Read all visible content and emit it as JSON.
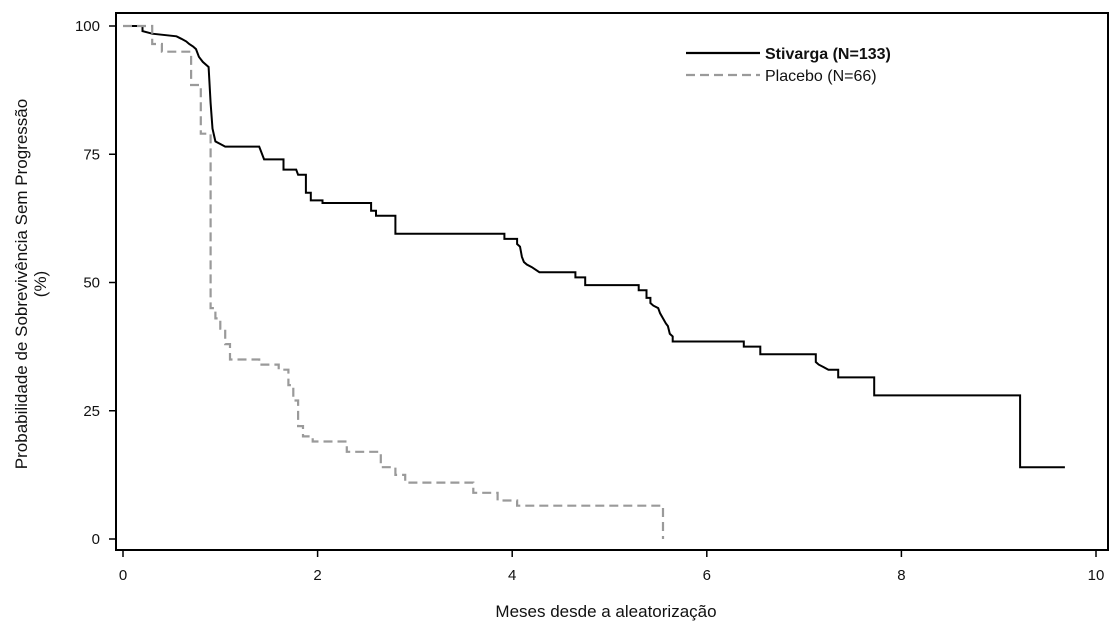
{
  "chart_data": {
    "type": "line",
    "subtype": "kaplan-meier step curves",
    "title": "",
    "xlabel": "Meses desde a aleatorização",
    "ylabel_lines": [
      "Probabilidade de Sobrevivência Sem Progressão",
      "(%)"
    ],
    "xlim": [
      0,
      10
    ],
    "ylim": [
      0,
      100
    ],
    "x_ticks": [
      0,
      2,
      4,
      6,
      8,
      10
    ],
    "y_ticks": [
      0,
      25,
      50,
      75,
      100
    ],
    "grid": false,
    "legend_position": "top-right",
    "series": [
      {
        "name": "Stivarga (N=133)",
        "legend_bold": true,
        "color": "#000000",
        "dash": "solid",
        "points": [
          [
            0,
            100
          ],
          [
            0.2,
            100
          ],
          [
            0.2,
            99
          ],
          [
            0.3,
            98.5
          ],
          [
            0.55,
            98
          ],
          [
            0.6,
            97.5
          ],
          [
            0.65,
            97
          ],
          [
            0.68,
            96.5
          ],
          [
            0.72,
            96
          ],
          [
            0.75,
            95.5
          ],
          [
            0.78,
            94
          ],
          [
            0.82,
            93
          ],
          [
            0.88,
            92
          ],
          [
            0.9,
            85
          ],
          [
            0.92,
            80
          ],
          [
            0.95,
            77.5
          ],
          [
            1.0,
            77
          ],
          [
            1.05,
            76.5
          ],
          [
            1.4,
            76.5
          ],
          [
            1.45,
            74
          ],
          [
            1.65,
            74
          ],
          [
            1.65,
            72
          ],
          [
            1.78,
            72
          ],
          [
            1.8,
            71
          ],
          [
            1.88,
            71
          ],
          [
            1.88,
            67.5
          ],
          [
            1.93,
            67.5
          ],
          [
            1.93,
            66
          ],
          [
            2.05,
            66
          ],
          [
            2.05,
            65.5
          ],
          [
            2.55,
            65.5
          ],
          [
            2.55,
            64
          ],
          [
            2.6,
            64
          ],
          [
            2.6,
            63
          ],
          [
            2.8,
            63
          ],
          [
            2.8,
            59.5
          ],
          [
            3.92,
            59.5
          ],
          [
            3.92,
            58.5
          ],
          [
            4.05,
            58.5
          ],
          [
            4.05,
            57.5
          ],
          [
            4.08,
            57
          ],
          [
            4.1,
            55
          ],
          [
            4.12,
            54
          ],
          [
            4.15,
            53.5
          ],
          [
            4.2,
            53
          ],
          [
            4.28,
            52
          ],
          [
            4.65,
            52
          ],
          [
            4.65,
            51
          ],
          [
            4.75,
            51
          ],
          [
            4.75,
            49.5
          ],
          [
            5.3,
            49.5
          ],
          [
            5.3,
            48.5
          ],
          [
            5.38,
            48.5
          ],
          [
            5.38,
            47
          ],
          [
            5.42,
            47
          ],
          [
            5.42,
            46
          ],
          [
            5.45,
            45.5
          ],
          [
            5.5,
            45
          ],
          [
            5.52,
            44
          ],
          [
            5.55,
            43
          ],
          [
            5.58,
            42
          ],
          [
            5.6,
            41.5
          ],
          [
            5.62,
            40
          ],
          [
            5.65,
            39.5
          ],
          [
            5.65,
            38.5
          ],
          [
            6.38,
            38.5
          ],
          [
            6.38,
            37.5
          ],
          [
            6.55,
            37.5
          ],
          [
            6.55,
            36
          ],
          [
            7.12,
            36
          ],
          [
            7.12,
            34.5
          ],
          [
            7.15,
            34
          ],
          [
            7.2,
            33.5
          ],
          [
            7.25,
            33
          ],
          [
            7.35,
            33
          ],
          [
            7.35,
            31.5
          ],
          [
            7.72,
            31.5
          ],
          [
            7.72,
            28
          ],
          [
            9.22,
            28
          ],
          [
            9.22,
            14
          ],
          [
            9.68,
            14
          ]
        ]
      },
      {
        "name": "Placebo (N=66)",
        "legend_bold": false,
        "color": "#9a9a9a",
        "dash": "dashed",
        "points": [
          [
            0,
            100
          ],
          [
            0.3,
            100
          ],
          [
            0.3,
            96.5
          ],
          [
            0.4,
            96.5
          ],
          [
            0.4,
            95
          ],
          [
            0.7,
            95
          ],
          [
            0.7,
            88.5
          ],
          [
            0.8,
            88.5
          ],
          [
            0.8,
            79
          ],
          [
            0.9,
            79
          ],
          [
            0.9,
            45
          ],
          [
            0.95,
            45
          ],
          [
            0.95,
            43
          ],
          [
            1.0,
            43
          ],
          [
            1.0,
            41
          ],
          [
            1.05,
            41
          ],
          [
            1.05,
            38
          ],
          [
            1.1,
            38
          ],
          [
            1.1,
            35
          ],
          [
            1.4,
            35
          ],
          [
            1.4,
            34
          ],
          [
            1.6,
            34
          ],
          [
            1.6,
            33
          ],
          [
            1.7,
            33
          ],
          [
            1.7,
            30
          ],
          [
            1.75,
            30
          ],
          [
            1.75,
            27
          ],
          [
            1.8,
            27
          ],
          [
            1.8,
            22
          ],
          [
            1.85,
            22
          ],
          [
            1.85,
            20
          ],
          [
            1.95,
            20
          ],
          [
            1.95,
            19
          ],
          [
            2.3,
            19
          ],
          [
            2.3,
            17
          ],
          [
            2.65,
            17
          ],
          [
            2.65,
            14
          ],
          [
            2.8,
            14
          ],
          [
            2.8,
            12.5
          ],
          [
            2.9,
            12.5
          ],
          [
            2.9,
            11
          ],
          [
            3.6,
            11
          ],
          [
            3.6,
            9
          ],
          [
            3.85,
            9
          ],
          [
            3.85,
            7.5
          ],
          [
            4.05,
            7.5
          ],
          [
            4.05,
            6.5
          ],
          [
            5.55,
            6.5
          ],
          [
            5.55,
            0
          ]
        ]
      }
    ]
  }
}
